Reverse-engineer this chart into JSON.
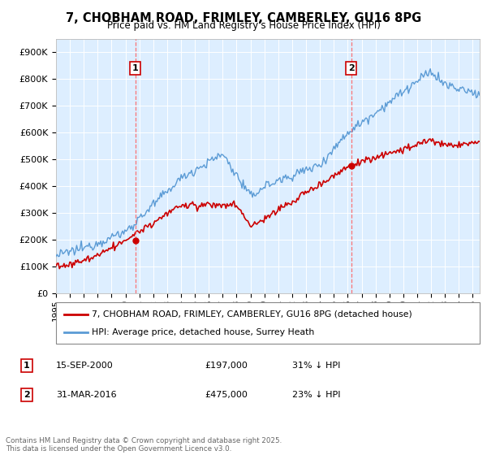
{
  "title": "7, CHOBHAM ROAD, FRIMLEY, CAMBERLEY, GU16 8PG",
  "subtitle": "Price paid vs. HM Land Registry's House Price Index (HPI)",
  "xlim_start": 1995.0,
  "xlim_end": 2025.5,
  "ylim": [
    0,
    950000
  ],
  "yticks": [
    0,
    100000,
    200000,
    300000,
    400000,
    500000,
    600000,
    700000,
    800000,
    900000
  ],
  "background_color": "#ddeeff",
  "red_color": "#cc0000",
  "blue_color": "#5b9bd5",
  "marker1_date": 2000.71,
  "marker1_price": 197000,
  "marker1_label": "15-SEP-2000",
  "marker1_text": "£197,000",
  "marker1_pct": "31% ↓ HPI",
  "marker2_date": 2016.25,
  "marker2_price": 475000,
  "marker2_label": "31-MAR-2016",
  "marker2_text": "£475,000",
  "marker2_pct": "23% ↓ HPI",
  "legend_line1": "7, CHOBHAM ROAD, FRIMLEY, CAMBERLEY, GU16 8PG (detached house)",
  "legend_line2": "HPI: Average price, detached house, Surrey Heath",
  "footer": "Contains HM Land Registry data © Crown copyright and database right 2025.\nThis data is licensed under the Open Government Licence v3.0."
}
